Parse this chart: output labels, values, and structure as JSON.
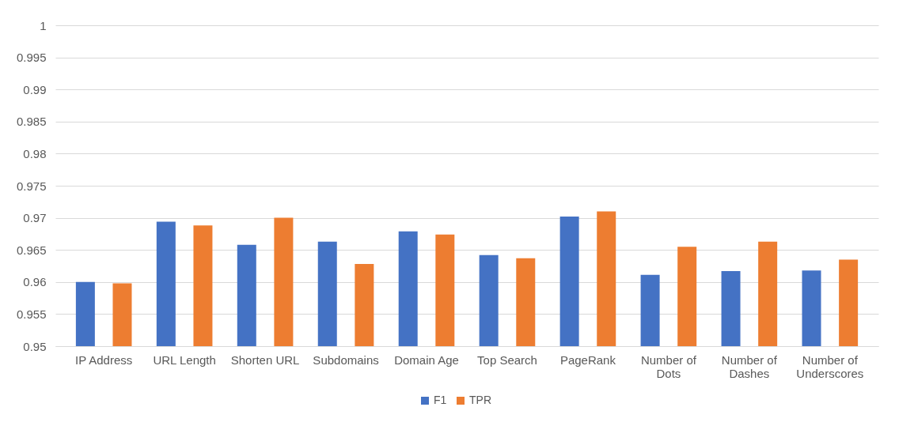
{
  "chart_data": {
    "type": "bar",
    "categories": [
      "IP Address",
      "URL Length",
      "Shorten URL",
      "Subdomains",
      "Domain Age",
      "Top Search",
      "PageRank",
      "Number of Dots",
      "Number of Dashes",
      "Number of Underscores"
    ],
    "series": [
      {
        "name": "F1",
        "color": "#4472c4",
        "values": [
          0.96,
          0.9694,
          0.9658,
          0.9663,
          0.9679,
          0.9642,
          0.9702,
          0.9611,
          0.9617,
          0.9618
        ]
      },
      {
        "name": "TPR",
        "color": "#ed7d31",
        "values": [
          0.9598,
          0.9688,
          0.97,
          0.9628,
          0.9674,
          0.9637,
          0.971,
          0.9655,
          0.9663,
          0.9635
        ]
      }
    ],
    "ylim": [
      0.95,
      1
    ],
    "yticks": [
      0.95,
      0.955,
      0.96,
      0.965,
      0.97,
      0.975,
      0.98,
      0.985,
      0.99,
      0.995,
      1
    ],
    "grid": "y",
    "legend": "bottom"
  }
}
